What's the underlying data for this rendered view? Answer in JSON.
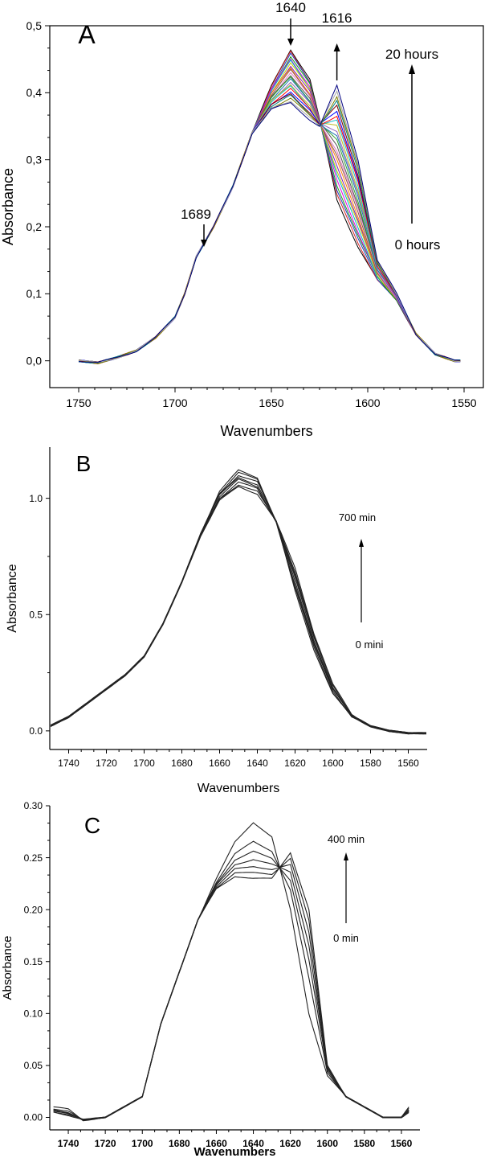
{
  "chart_data": [
    {
      "type": "line",
      "panel_label": "A",
      "xlabel": "Wavenumbers",
      "ylabel": "Absorbance",
      "xlim": [
        1765,
        1540
      ],
      "ylim": [
        -0.04,
        0.5
      ],
      "x_ticks": [
        "1750",
        "1700",
        "1650",
        "1600",
        "1550"
      ],
      "x_tick_values": [
        1750,
        1700,
        1650,
        1600,
        1550
      ],
      "y_ticks": [
        "0,0",
        "0,1",
        "0,2",
        "0,3",
        "0,4",
        "0,5"
      ],
      "y_tick_values": [
        0,
        0.1,
        0.2,
        0.3,
        0.4,
        0.5
      ],
      "annotations": [
        {
          "text": "1640",
          "x": 1640,
          "arrow": "down"
        },
        {
          "text": "1616",
          "x": 1616,
          "arrow": "up"
        },
        {
          "text": "1689",
          "x": 1685,
          "arrow": "down"
        }
      ],
      "time_arrow": {
        "start_label": "0 hours",
        "end_label": "20 hours"
      },
      "curve_colors": [
        "#000000",
        "#d62728",
        "#1f3fbf",
        "#18a018",
        "#e000e0",
        "#00b8c8",
        "#c8c800",
        "#7a1fbf",
        "#ff7f0e",
        "#8c564b",
        "#e377c2",
        "#555555",
        "#2ca02c",
        "#1f77b4",
        "#9467bd",
        "#bcbd22",
        "#17becf",
        "#ff0000",
        "#0000ff",
        "#800000",
        "#008080",
        "#808000",
        "#aaaaaa",
        "#000080"
      ],
      "series": [
        {
          "name": "0 hours",
          "x": [
            1750,
            1740,
            1730,
            1720,
            1710,
            1700,
            1695,
            1689,
            1680,
            1670,
            1660,
            1650,
            1640,
            1630,
            1625,
            1616,
            1605,
            1595,
            1585,
            1575,
            1565,
            1555,
            1552
          ],
          "values": [
            0.0,
            -0.003,
            0.005,
            0.015,
            0.035,
            0.065,
            0.1,
            0.155,
            0.2,
            0.26,
            0.34,
            0.41,
            0.465,
            0.42,
            0.36,
            0.24,
            0.17,
            0.12,
            0.09,
            0.04,
            0.01,
            0.0,
            0.0
          ]
        },
        {
          "name": "20 hours",
          "x": [
            1750,
            1740,
            1730,
            1720,
            1710,
            1700,
            1695,
            1689,
            1680,
            1670,
            1660,
            1650,
            1640,
            1630,
            1625,
            1616,
            1605,
            1595,
            1585,
            1575,
            1565,
            1555,
            1552
          ],
          "values": [
            0.0,
            -0.003,
            0.005,
            0.015,
            0.035,
            0.065,
            0.1,
            0.155,
            0.2,
            0.26,
            0.34,
            0.375,
            0.385,
            0.36,
            0.35,
            0.41,
            0.3,
            0.15,
            0.1,
            0.04,
            0.01,
            0.0,
            0.0
          ]
        }
      ]
    },
    {
      "type": "line",
      "panel_label": "B",
      "xlabel": "Wavenumbers",
      "ylabel": "Absorbance",
      "xlim": [
        1750,
        1550
      ],
      "ylim": [
        -0.08,
        1.22
      ],
      "x_ticks": [
        "1740",
        "1720",
        "1700",
        "1680",
        "1660",
        "1640",
        "1620",
        "1600",
        "1580",
        "1560"
      ],
      "x_tick_values": [
        1740,
        1720,
        1700,
        1680,
        1660,
        1640,
        1620,
        1600,
        1580,
        1560
      ],
      "y_ticks": [
        "0.0",
        "0.5",
        "1.0"
      ],
      "y_tick_values": [
        0,
        0.5,
        1.0
      ],
      "time_arrow": {
        "start_label": "0 mini",
        "end_label": "700 min"
      },
      "series": [
        {
          "name": "0 min",
          "x": [
            1750,
            1740,
            1730,
            1720,
            1710,
            1700,
            1690,
            1680,
            1670,
            1660,
            1650,
            1640,
            1630,
            1620,
            1610,
            1600,
            1590,
            1580,
            1570,
            1560,
            1550
          ],
          "values": [
            0.02,
            0.06,
            0.12,
            0.18,
            0.24,
            0.32,
            0.46,
            0.64,
            0.85,
            1.03,
            1.12,
            1.09,
            0.9,
            0.6,
            0.35,
            0.16,
            0.06,
            0.02,
            0.0,
            -0.01,
            -0.01
          ]
        },
        {
          "name": "700 min",
          "x": [
            1750,
            1740,
            1730,
            1720,
            1710,
            1700,
            1690,
            1680,
            1670,
            1660,
            1650,
            1640,
            1630,
            1620,
            1610,
            1600,
            1590,
            1580,
            1570,
            1560,
            1550
          ],
          "values": [
            0.02,
            0.06,
            0.12,
            0.18,
            0.24,
            0.32,
            0.46,
            0.64,
            0.84,
            0.99,
            1.05,
            1.02,
            0.9,
            0.7,
            0.42,
            0.2,
            0.07,
            0.02,
            0.0,
            -0.01,
            -0.01
          ]
        }
      ]
    },
    {
      "type": "line",
      "panel_label": "C",
      "xlabel": "Wavenumbers",
      "ylabel": "Absorbance",
      "xlim": [
        1750,
        1550
      ],
      "ylim": [
        -0.012,
        0.3
      ],
      "x_ticks": [
        "1740",
        "1720",
        "1700",
        "1680",
        "1660",
        "1640",
        "1620",
        "1600",
        "1580",
        "1560"
      ],
      "x_tick_values": [
        1740,
        1720,
        1700,
        1680,
        1660,
        1640,
        1620,
        1600,
        1580,
        1560
      ],
      "y_ticks": [
        "0.00",
        "0.05",
        "0.10",
        "0.15",
        "0.20",
        "0.25",
        "0.30"
      ],
      "y_tick_values": [
        0,
        0.05,
        0.1,
        0.15,
        0.2,
        0.25,
        0.3
      ],
      "time_arrow": {
        "start_label": "0 min",
        "end_label": "400 min"
      },
      "series": [
        {
          "name": "0 min",
          "x": [
            1748,
            1740,
            1732,
            1720,
            1710,
            1700,
            1690,
            1680,
            1670,
            1660,
            1650,
            1640,
            1630,
            1620,
            1610,
            1600,
            1590,
            1580,
            1570,
            1560,
            1556
          ],
          "values": [
            0.01,
            0.008,
            -0.003,
            0.0,
            0.01,
            0.02,
            0.09,
            0.14,
            0.19,
            0.23,
            0.265,
            0.284,
            0.27,
            0.2,
            0.1,
            0.04,
            0.02,
            0.01,
            0.0,
            0.0,
            0.01
          ]
        },
        {
          "name": "400 min",
          "x": [
            1748,
            1740,
            1732,
            1720,
            1710,
            1700,
            1690,
            1680,
            1670,
            1660,
            1650,
            1640,
            1630,
            1620,
            1610,
            1600,
            1590,
            1580,
            1570,
            1560,
            1556
          ],
          "values": [
            0.005,
            0.002,
            -0.002,
            0.0,
            0.01,
            0.02,
            0.09,
            0.14,
            0.19,
            0.22,
            0.232,
            0.23,
            0.23,
            0.255,
            0.2,
            0.05,
            0.02,
            0.01,
            0.0,
            0.0,
            0.005
          ]
        }
      ]
    }
  ]
}
